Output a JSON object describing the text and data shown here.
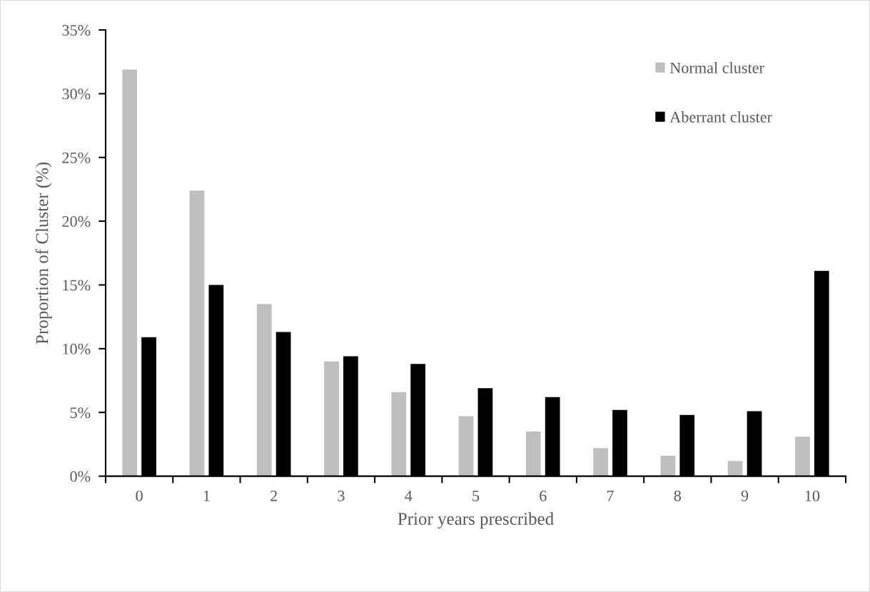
{
  "chart_data": {
    "type": "bar",
    "xlabel": "Prior years prescribed",
    "ylabel": "Proportion of Cluster (%)",
    "categories": [
      "0",
      "1",
      "2",
      "3",
      "4",
      "5",
      "6",
      "7",
      "8",
      "9",
      "10"
    ],
    "series": [
      {
        "name": "Normal cluster",
        "color": "#bfbfbf",
        "values": [
          31.9,
          22.4,
          13.5,
          9.0,
          6.6,
          4.7,
          3.5,
          2.2,
          1.6,
          1.2,
          3.1
        ]
      },
      {
        "name": "Aberrant cluster",
        "color": "#000000",
        "values": [
          10.9,
          15.0,
          11.3,
          9.4,
          8.8,
          6.9,
          6.2,
          5.2,
          4.8,
          5.1,
          16.1
        ]
      }
    ],
    "ylim": [
      0,
      35
    ],
    "yticks": [
      {
        "value": 0,
        "label": "0%"
      },
      {
        "value": 5,
        "label": "5%"
      },
      {
        "value": 10,
        "label": "10%"
      },
      {
        "value": 15,
        "label": "15%"
      },
      {
        "value": 20,
        "label": "20%"
      },
      {
        "value": 25,
        "label": "25%"
      },
      {
        "value": 30,
        "label": "30%"
      },
      {
        "value": 35,
        "label": "35%"
      }
    ],
    "grid": false,
    "legend": "top right"
  }
}
